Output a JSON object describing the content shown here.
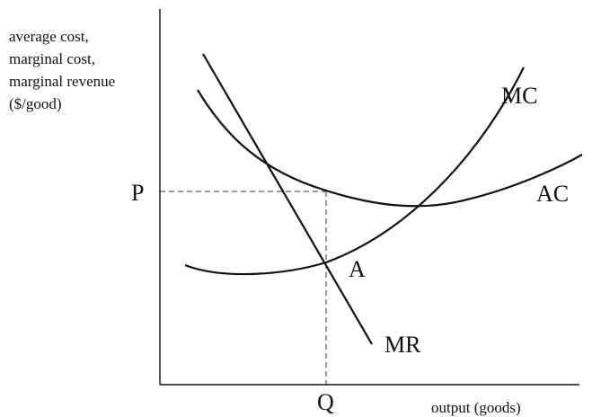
{
  "diagram": {
    "y_axis_label": [
      "average cost,",
      "marginal cost,",
      "marginal revenue",
      "($/good)"
    ],
    "x_axis_label": "output (goods)",
    "price_label": "P",
    "quantity_label": "Q",
    "curves": {
      "mc": "MC",
      "ac": "AC",
      "mr": "MR"
    },
    "point_label": "A"
  }
}
